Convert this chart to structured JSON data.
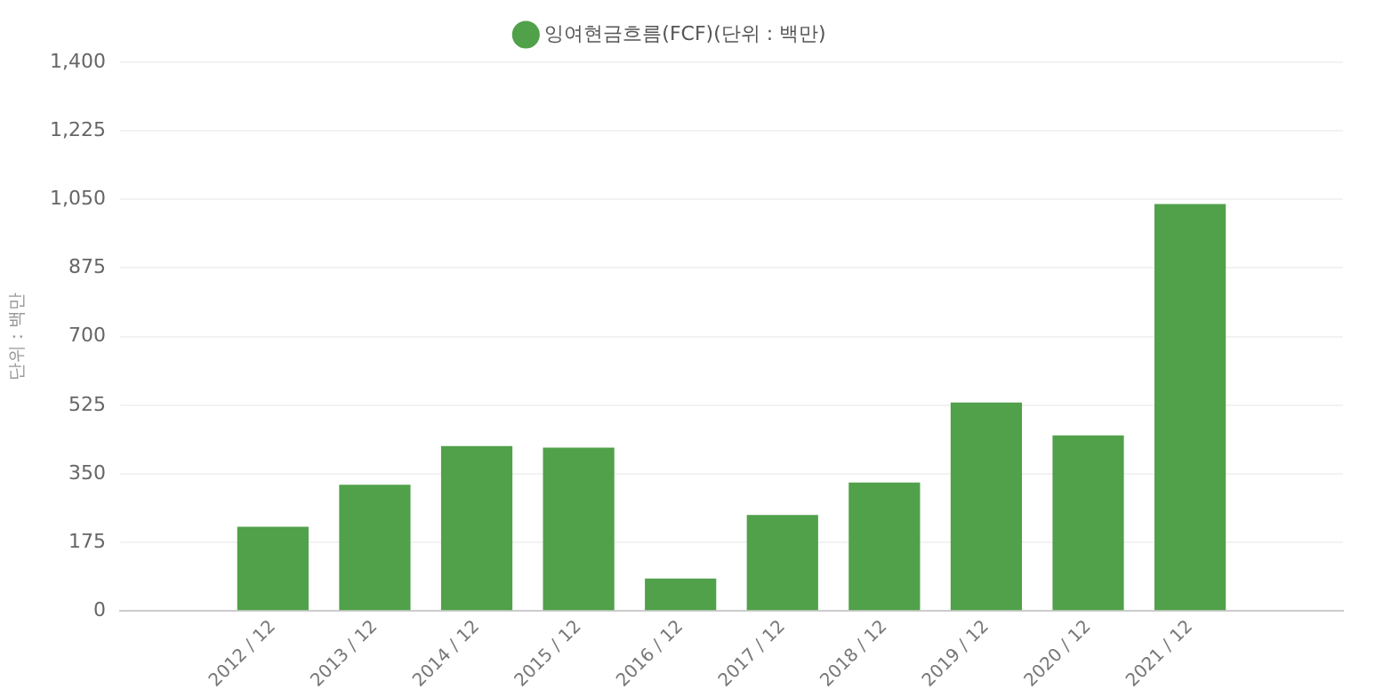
{
  "chart_data": {
    "type": "bar",
    "ylabel": "단위 : 백만",
    "categories": [
      null,
      "2012 / 12",
      "2013 / 12",
      "2014 / 12",
      "2015 / 12",
      "2016 / 12",
      "2017 / 12",
      "2018 / 12",
      "2019 / 12",
      "2020 / 12",
      "2021 / 12",
      null
    ],
    "series": [
      {
        "name": "잉여현금흐름(FCF)(단위 : 백만)",
        "color": "#50a14a",
        "values": [
          null,
          215,
          322,
          421,
          417,
          83,
          245,
          328,
          532,
          448,
          1038,
          null
        ]
      }
    ],
    "ylim": [
      0,
      1400
    ],
    "yticks": [
      0,
      {
        "value": 175,
        "label": "175"
      },
      {
        "value": 350,
        "label": "350"
      },
      {
        "value": 525,
        "label": "525"
      },
      {
        "value": 700,
        "label": "700"
      },
      {
        "value": 875,
        "label": "875"
      },
      {
        "value": 1050,
        "label": "1,050"
      },
      {
        "value": 1225,
        "label": "1,225"
      },
      {
        "value": 1400,
        "label": "1,400"
      }
    ],
    "grid": "y",
    "legend": "top"
  }
}
